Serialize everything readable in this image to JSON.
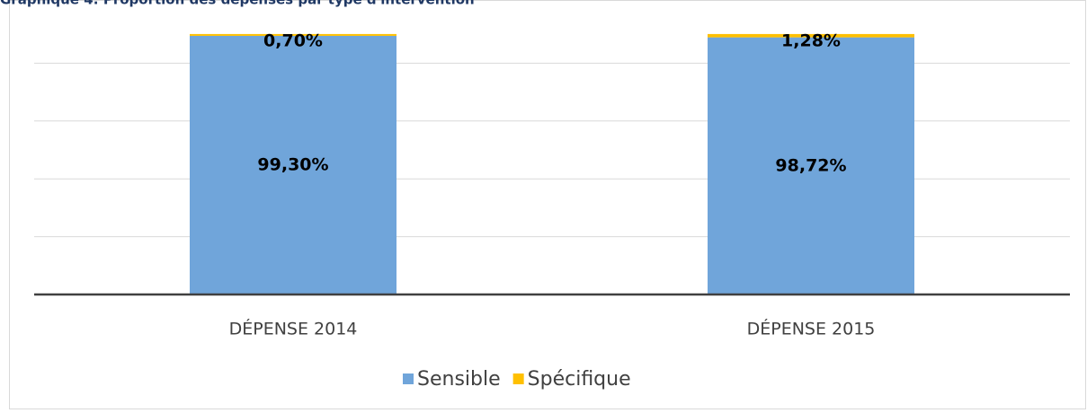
{
  "chart_data": {
    "type": "stacked_bar",
    "title": "Graphique 4: Proportion des dépenses par type d'intervention",
    "categories": [
      "DÉPENSE 2014",
      "DÉPENSE 2015"
    ],
    "series": [
      {
        "name": "Sensible",
        "color": "#70a5da",
        "values": [
          99.3,
          98.72
        ],
        "value_labels": [
          "99,30%",
          "98,72%"
        ]
      },
      {
        "name": "Spécifique",
        "color": "#ffc000",
        "values": [
          0.7,
          1.28
        ],
        "value_labels": [
          "0,70%",
          "1,28%"
        ]
      }
    ],
    "ylim": [
      0,
      111
    ],
    "yticks": [
      0,
      22.2,
      44.4,
      66.6,
      88.8
    ],
    "grid": true,
    "legend": "bottom"
  }
}
